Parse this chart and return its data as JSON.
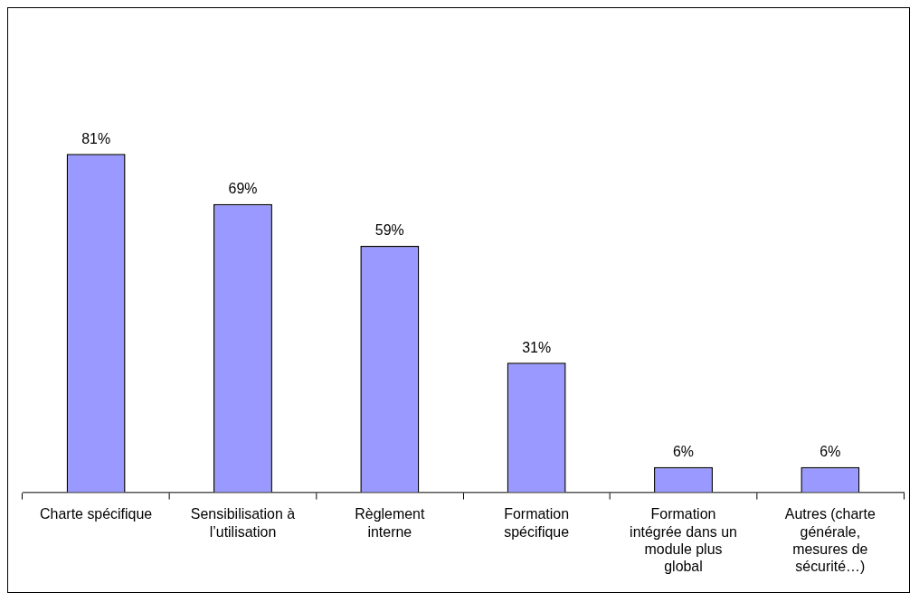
{
  "chart_data": {
    "type": "bar",
    "categories": [
      "Charte spécifique",
      "Sensibilisation à l’utilisation",
      "Règlement interne",
      "Formation spécifique",
      "Formation intégrée dans un module plus global",
      "Autres (charte générale, mesures de sécurité…)"
    ],
    "values": [
      81,
      69,
      59,
      31,
      6,
      6
    ],
    "value_labels": [
      "81%",
      "69%",
      "59%",
      "31%",
      "6%",
      "6%"
    ],
    "color": "#9999ff",
    "grid": false,
    "legend": false
  }
}
